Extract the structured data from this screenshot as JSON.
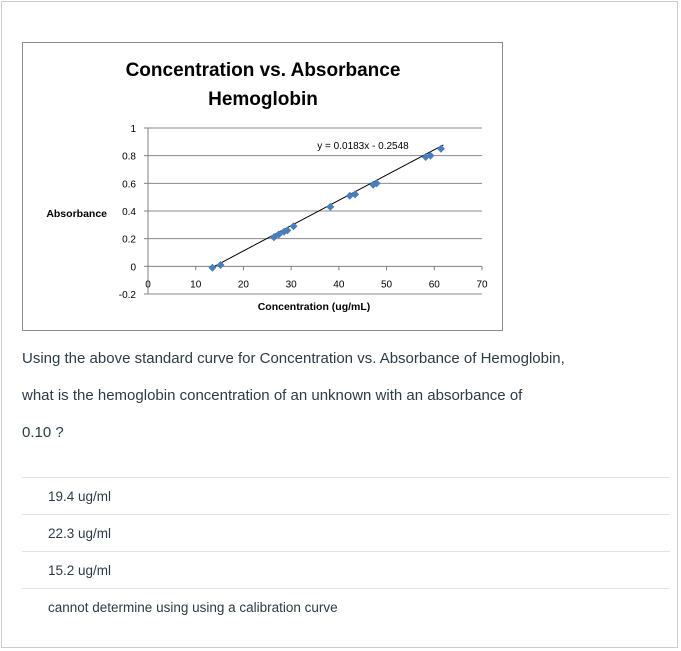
{
  "chart_data": {
    "type": "scatter",
    "title": "Concentration vs. Absorbance",
    "subtitle": "Hemoglobin",
    "xlabel": "Concentration (ug/mL)",
    "ylabel": "Absorbance",
    "xlim": [
      0,
      70
    ],
    "ylim": [
      -0.2,
      1
    ],
    "x_ticks": [
      "0",
      "10",
      "20",
      "30",
      "40",
      "50",
      "60",
      "70"
    ],
    "y_ticks": [
      "-0.2",
      "0",
      "0.2",
      "0.4",
      "0.6",
      "0.8",
      "1"
    ],
    "grid": true,
    "trendline": {
      "slope": 0.0183,
      "intercept": -0.2548,
      "label": "y = 0.0183x - 0.2548"
    },
    "series": [
      {
        "color": "#4a7ebb",
        "points": [
          [
            13.5,
            -0.01
          ],
          [
            15.2,
            0.01
          ],
          [
            26.4,
            0.21
          ],
          [
            27.4,
            0.23
          ],
          [
            28.5,
            0.25
          ],
          [
            29.2,
            0.26
          ],
          [
            30.5,
            0.29
          ],
          [
            38.2,
            0.43
          ],
          [
            42.3,
            0.51
          ],
          [
            43.4,
            0.52
          ],
          [
            47.2,
            0.59
          ],
          [
            47.9,
            0.6
          ],
          [
            58.2,
            0.79
          ],
          [
            59.2,
            0.8
          ],
          [
            61.4,
            0.85
          ]
        ]
      }
    ]
  },
  "question": {
    "line1": "Using the above standard curve for Concentration vs. Absorbance of Hemoglobin,",
    "line2": "what is the hemoglobin concentration of an unknown with an absorbance of",
    "line3": "0.10 ?"
  },
  "answers": [
    {
      "label": "19.4 ug/ml"
    },
    {
      "label": "22.3 ug/ml"
    },
    {
      "label": "15.2 ug/ml"
    },
    {
      "label": "cannot determine using using a calibration curve"
    }
  ]
}
